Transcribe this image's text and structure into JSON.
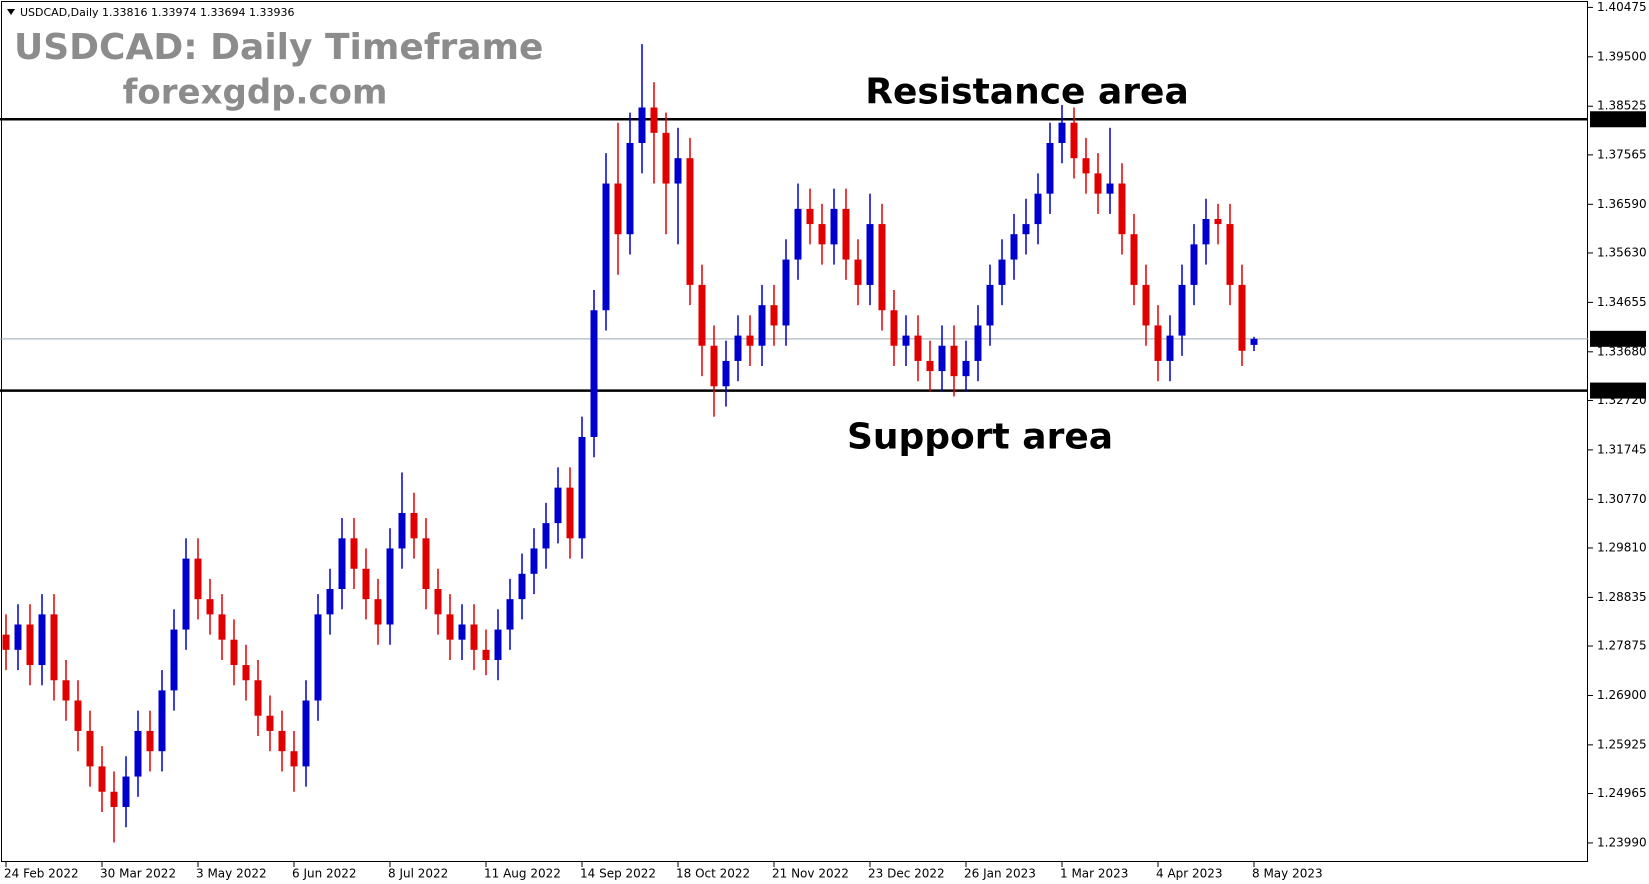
{
  "chart_data": {
    "type": "candlestick",
    "info": "USDCAD,Daily  1.33816 1.33974 1.33694 1.33936",
    "title": "USDCAD: Daily Timeframe",
    "subtitle": "forexgdp.com",
    "annotations": [
      {
        "text": "Resistance area",
        "value": 1.38268
      },
      {
        "text": "Support area",
        "value": 1.32915
      }
    ],
    "bull_color": "#0000cc",
    "bear_color": "#e00000",
    "levels": [
      {
        "value": 1.38268,
        "color": "#000000"
      },
      {
        "value": 1.33936,
        "color": "#9aa8b4"
      },
      {
        "value": 1.32915,
        "color": "#000000"
      }
    ],
    "ylim": [
      1.23614,
      1.40621
    ],
    "yticks": [
      1.40475,
      {
        "value": 1.395,
        "label": "1.39500"
      },
      1.38525,
      1.37565,
      {
        "value": 1.3659,
        "label": "1.36590"
      },
      {
        "value": 1.3563,
        "label": "1.35630"
      },
      1.34655,
      {
        "value": 1.3368,
        "label": "1.33680"
      },
      {
        "value": 1.3272,
        "label": "1.32720"
      },
      1.31745,
      {
        "value": 1.3077,
        "label": "1.30770"
      },
      {
        "value": 1.2981,
        "label": "1.29810"
      },
      1.28835,
      1.27875,
      {
        "value": 1.269,
        "label": "1.26900"
      },
      1.25925,
      1.24965,
      {
        "value": 1.2399,
        "label": "1.23990"
      }
    ],
    "categories": [
      "24 Feb 2022",
      null,
      null,
      null,
      null,
      null,
      null,
      null,
      "30 Mar 2022",
      null,
      null,
      null,
      null,
      null,
      null,
      null,
      "3 May 2022",
      null,
      null,
      null,
      null,
      null,
      null,
      null,
      "6 Jun 2022",
      null,
      null,
      null,
      null,
      null,
      null,
      null,
      "8 Jul 2022",
      null,
      null,
      null,
      null,
      null,
      null,
      null,
      "11 Aug 2022",
      null,
      null,
      null,
      null,
      null,
      null,
      null,
      "14 Sep 2022",
      null,
      null,
      null,
      null,
      null,
      null,
      null,
      "18 Oct 2022",
      null,
      null,
      null,
      null,
      null,
      null,
      null,
      "21 Nov 2022",
      null,
      null,
      null,
      null,
      null,
      null,
      null,
      "23 Dec 2022",
      null,
      null,
      null,
      null,
      null,
      null,
      null,
      "26 Jan 2023",
      null,
      null,
      null,
      null,
      null,
      null,
      null,
      "1 Mar 2023",
      null,
      null,
      null,
      null,
      null,
      null,
      null,
      "4 Apr 2023",
      null,
      null,
      null,
      null,
      null,
      null,
      null,
      "8 May 2023"
    ],
    "open": [
      1.281,
      1.278,
      1.283,
      1.275,
      1.285,
      1.272,
      1.268,
      1.262,
      1.255,
      1.25,
      1.247,
      1.253,
      1.262,
      1.258,
      1.27,
      1.282,
      1.296,
      1.288,
      1.285,
      1.28,
      1.275,
      1.272,
      1.265,
      1.262,
      1.258,
      1.255,
      1.268,
      1.285,
      1.29,
      1.3,
      1.294,
      1.288,
      1.283,
      1.298,
      1.305,
      1.3,
      1.29,
      1.285,
      1.28,
      1.283,
      1.278,
      1.276,
      1.282,
      1.288,
      1.293,
      1.298,
      1.303,
      1.31,
      1.3,
      1.32,
      1.345,
      1.37,
      1.36,
      1.378,
      1.385,
      1.38,
      1.37,
      1.375,
      1.35,
      1.338,
      1.33,
      1.335,
      1.34,
      1.338,
      1.346,
      1.342,
      1.355,
      1.365,
      1.362,
      1.358,
      1.365,
      1.355,
      1.35,
      1.362,
      1.345,
      1.338,
      1.34,
      1.335,
      1.333,
      1.338,
      1.332,
      1.335,
      1.342,
      1.35,
      1.355,
      1.36,
      1.362,
      1.368,
      1.378,
      1.382,
      1.375,
      1.372,
      1.368,
      1.37,
      1.36,
      1.35,
      1.342,
      1.335,
      1.34,
      1.35,
      1.358,
      1.363,
      1.362,
      1.35,
      1.33816
    ],
    "high": [
      1.285,
      1.287,
      1.287,
      1.289,
      1.289,
      1.276,
      1.272,
      1.266,
      1.259,
      1.254,
      1.257,
      1.266,
      1.266,
      1.274,
      1.286,
      1.3,
      1.3,
      1.292,
      1.289,
      1.284,
      1.279,
      1.276,
      1.269,
      1.266,
      1.262,
      1.272,
      1.289,
      1.294,
      1.304,
      1.304,
      1.298,
      1.292,
      1.302,
      1.313,
      1.309,
      1.304,
      1.294,
      1.289,
      1.287,
      1.287,
      1.282,
      1.286,
      1.292,
      1.297,
      1.302,
      1.307,
      1.314,
      1.314,
      1.324,
      1.349,
      1.376,
      1.382,
      1.384,
      1.3975,
      1.39,
      1.384,
      1.381,
      1.379,
      1.354,
      1.342,
      1.339,
      1.344,
      1.344,
      1.35,
      1.35,
      1.359,
      1.37,
      1.369,
      1.366,
      1.369,
      1.369,
      1.359,
      1.368,
      1.366,
      1.349,
      1.344,
      1.344,
      1.339,
      1.342,
      1.342,
      1.339,
      1.346,
      1.354,
      1.359,
      1.364,
      1.367,
      1.372,
      1.382,
      1.3855,
      1.385,
      1.379,
      1.376,
      1.381,
      1.374,
      1.364,
      1.354,
      1.346,
      1.344,
      1.354,
      1.362,
      1.367,
      1.366,
      1.366,
      1.354,
      1.33974
    ],
    "low": [
      1.274,
      1.274,
      1.271,
      1.271,
      1.268,
      1.264,
      1.258,
      1.251,
      1.246,
      1.24,
      1.243,
      1.249,
      1.254,
      1.254,
      1.266,
      1.278,
      1.284,
      1.281,
      1.276,
      1.271,
      1.268,
      1.261,
      1.258,
      1.254,
      1.25,
      1.251,
      1.264,
      1.281,
      1.286,
      1.29,
      1.284,
      1.279,
      1.279,
      1.294,
      1.296,
      1.286,
      1.281,
      1.276,
      1.276,
      1.274,
      1.273,
      1.272,
      1.278,
      1.284,
      1.289,
      1.294,
      1.299,
      1.296,
      1.296,
      1.316,
      1.341,
      1.352,
      1.356,
      1.372,
      1.37,
      1.36,
      1.358,
      1.346,
      1.332,
      1.324,
      1.326,
      1.331,
      1.334,
      1.334,
      1.338,
      1.338,
      1.351,
      1.358,
      1.354,
      1.354,
      1.351,
      1.346,
      1.346,
      1.341,
      1.334,
      1.334,
      1.331,
      1.329,
      1.329,
      1.328,
      1.329,
      1.331,
      1.338,
      1.346,
      1.351,
      1.356,
      1.358,
      1.364,
      1.374,
      1.371,
      1.368,
      1.364,
      1.364,
      1.356,
      1.346,
      1.338,
      1.331,
      1.331,
      1.336,
      1.346,
      1.354,
      1.358,
      1.346,
      1.334,
      1.33694
    ],
    "close": [
      1.278,
      1.283,
      1.275,
      1.285,
      1.272,
      1.268,
      1.262,
      1.255,
      1.25,
      1.247,
      1.253,
      1.262,
      1.258,
      1.27,
      1.282,
      1.296,
      1.288,
      1.285,
      1.28,
      1.275,
      1.272,
      1.265,
      1.262,
      1.258,
      1.255,
      1.268,
      1.285,
      1.29,
      1.3,
      1.294,
      1.288,
      1.283,
      1.298,
      1.305,
      1.3,
      1.29,
      1.285,
      1.28,
      1.283,
      1.278,
      1.276,
      1.282,
      1.288,
      1.293,
      1.298,
      1.303,
      1.31,
      1.3,
      1.32,
      1.345,
      1.37,
      1.36,
      1.378,
      1.385,
      1.38,
      1.37,
      1.375,
      1.35,
      1.338,
      1.33,
      1.335,
      1.34,
      1.338,
      1.346,
      1.342,
      1.355,
      1.365,
      1.362,
      1.358,
      1.365,
      1.355,
      1.35,
      1.362,
      1.345,
      1.338,
      1.34,
      1.335,
      1.333,
      1.338,
      1.332,
      1.335,
      1.342,
      1.35,
      1.355,
      1.36,
      1.362,
      1.368,
      1.378,
      1.382,
      1.375,
      1.372,
      1.368,
      1.37,
      1.36,
      1.35,
      1.342,
      1.335,
      1.34,
      1.35,
      1.358,
      1.363,
      1.362,
      1.35,
      1.337,
      1.33936
    ]
  }
}
